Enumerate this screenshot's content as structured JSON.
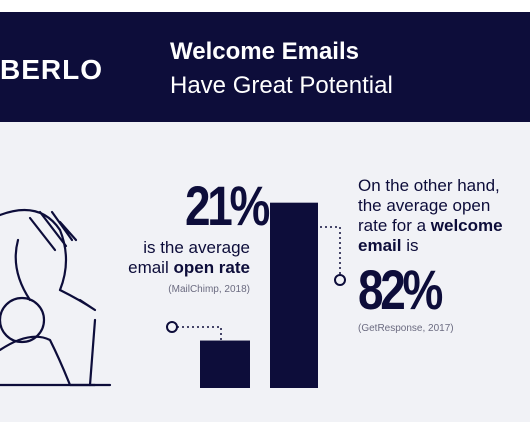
{
  "chart_data": {
    "type": "bar",
    "brand": "BERLO",
    "title": "Welcome Emails",
    "subtitle": "Have Great Potential",
    "values": [
      21,
      82
    ],
    "value_labels": [
      "21%",
      "82%"
    ],
    "color": "#0d0d3a",
    "annotations": [
      {
        "lines": [
          [
            "is the average"
          ],
          [
            "email ",
            "open rate"
          ]
        ],
        "source": "(MailChimp, 2018)"
      },
      {
        "lines": [
          [
            "On the other hand,"
          ],
          [
            "the average open"
          ],
          [
            "rate for a ",
            "welcome"
          ],
          [
            "email",
            " is"
          ]
        ],
        "source": "(GetResponse, 2017)"
      }
    ]
  }
}
